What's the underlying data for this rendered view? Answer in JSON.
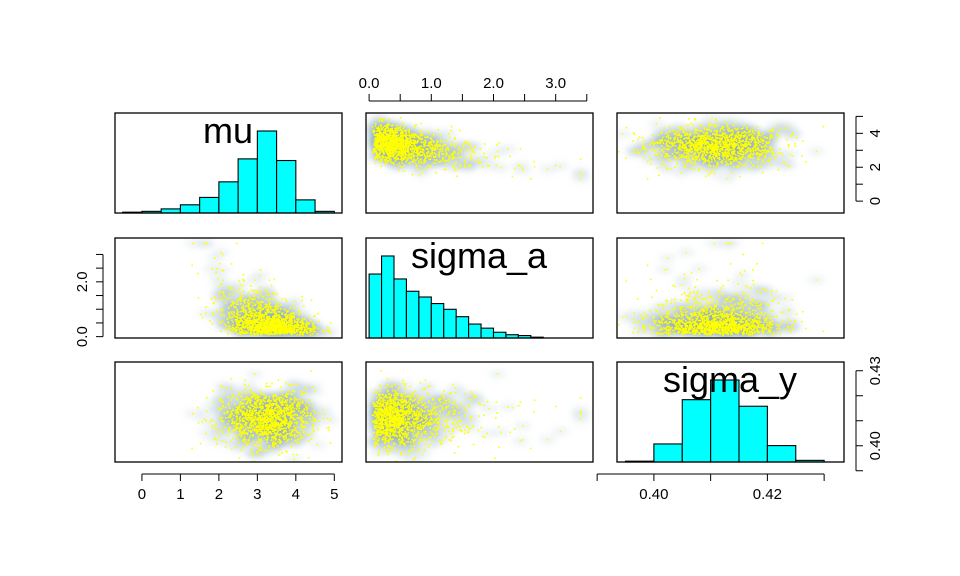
{
  "chart_data": {
    "type": "pairs",
    "variables": [
      "mu",
      "sigma_a",
      "sigma_y"
    ],
    "colors": {
      "histogram_fill": "#00ffff",
      "points": "#ffff00",
      "density_smooth": "#8aa9c1"
    },
    "axes": {
      "mu": {
        "ticks": [
          0,
          1,
          2,
          3,
          4,
          5
        ],
        "tick_labels": [
          "0",
          "1",
          "2",
          "3",
          "4",
          "5"
        ],
        "range": [
          -0.7,
          5.2
        ]
      },
      "sigma_a": {
        "ticks": [
          0,
          0.5,
          1,
          1.5,
          2,
          2.5,
          3,
          3.5
        ],
        "tick_labels": [
          "0.0",
          "",
          "1.0",
          "",
          "2.0",
          "",
          "3.0",
          ""
        ],
        "range": [
          -0.05,
          3.6
        ]
      },
      "sigma_y": {
        "ticks": [
          0.39,
          0.4,
          0.41,
          0.42,
          0.43
        ],
        "tick_labels": [
          "",
          "0.40",
          "",
          "0.42",
          ""
        ],
        "range": [
          0.3935,
          0.4335
        ]
      },
      "mu_right_axis": {
        "ticks": [
          0,
          1,
          2,
          3,
          4,
          5
        ],
        "tick_labels": [
          "0",
          "",
          "2",
          "",
          "4",
          ""
        ]
      },
      "sigma_a_left_axis": {
        "ticks": [
          0,
          0.5,
          1,
          1.5,
          2,
          2.5,
          3
        ],
        "tick_labels": [
          "0.0",
          "",
          "",
          "",
          "2.0",
          "",
          ""
        ]
      },
      "sigma_y_right_axis": {
        "ticks": [
          0.39,
          0.4,
          0.41,
          0.42,
          0.43
        ],
        "tick_labels": [
          "",
          "0.40",
          "",
          "",
          "0.43"
        ]
      }
    },
    "histograms": [
      {
        "variable": "mu",
        "breaks": [
          -0.5,
          0,
          0.5,
          1,
          1.5,
          2,
          2.5,
          3,
          3.5,
          4,
          4.5,
          5
        ],
        "counts": [
          1,
          2,
          5,
          10,
          19,
          38,
          66,
          100,
          64,
          16,
          2
        ]
      },
      {
        "variable": "sigma_a",
        "breaks": [
          0,
          0.2,
          0.4,
          0.6,
          0.8,
          1.0,
          1.2,
          1.4,
          1.6,
          1.8,
          2.0,
          2.2,
          2.4,
          2.6,
          2.8,
          3.0
        ],
        "counts": [
          78,
          100,
          72,
          57,
          50,
          42,
          35,
          26,
          17,
          12,
          7,
          4,
          3,
          1,
          0
        ]
      },
      {
        "variable": "sigma_y",
        "breaks": [
          0.395,
          0.4,
          0.405,
          0.41,
          0.415,
          0.42,
          0.425,
          0.43
        ],
        "counts": [
          1,
          22,
          76,
          100,
          68,
          20,
          2
        ]
      }
    ],
    "scatter_summary": {
      "mu_vs_sigma_a": "negative correlation; sigma_a concentrated near 0.2-0.5 when mu near 3-4",
      "mu_vs_sigma_y": "roughly independent; mu centered ~3.2, sigma_y ~0.41",
      "sigma_a_vs_sigma_y": "roughly independent; sigma_a concentrated near 0.3-0.8"
    }
  }
}
